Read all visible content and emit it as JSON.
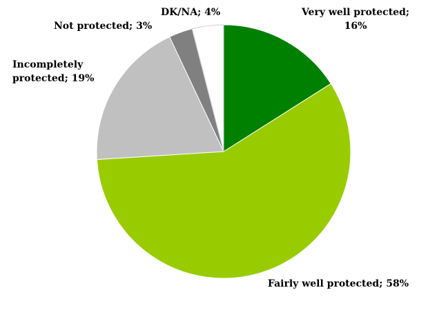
{
  "chart_data": {
    "type": "pie",
    "values": [
      16,
      58,
      19,
      3,
      4
    ],
    "value_labels": [
      "Very well protected; 16%",
      "Fairly well protected; 58%",
      "Incompletely protected; 19%",
      "Not protected; 3%",
      "DK/NA; 4%"
    ],
    "colors": [
      "#008000",
      "#99cc00",
      "#c0c0c0",
      "#808080",
      "#ffffff"
    ],
    "start_angle": 0,
    "direction": "clockwise"
  }
}
